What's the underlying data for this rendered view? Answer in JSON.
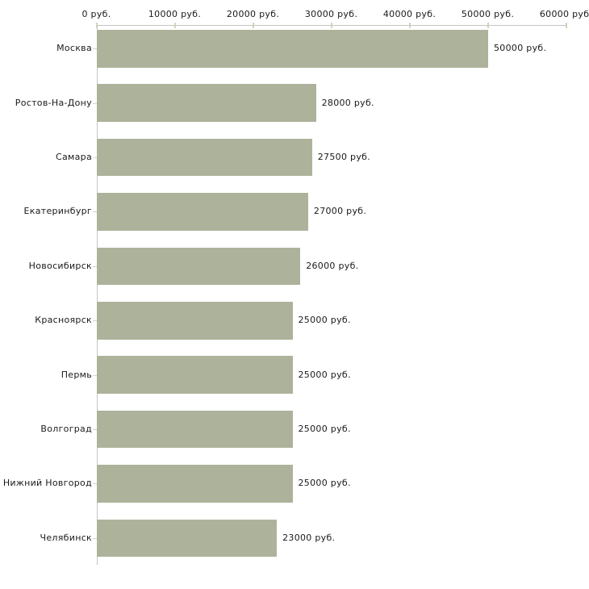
{
  "chart_data": {
    "type": "bar",
    "orientation": "horizontal",
    "unit": "руб.",
    "grid": false,
    "legend": false,
    "categories": [
      "Москва",
      "Ростов-На-Дону",
      "Самара",
      "Екатеринбург",
      "Новосибирск",
      "Красноярск",
      "Пермь",
      "Волгоград",
      "Нижний Новгород",
      "Челябинск"
    ],
    "values": [
      50000,
      28000,
      27500,
      27000,
      26000,
      25000,
      25000,
      25000,
      25000,
      23000
    ],
    "bar_value_labels": [
      "50000 руб.",
      "28000 руб.",
      "27500 руб.",
      "27000 руб.",
      "26000 руб.",
      "25000 руб.",
      "25000 руб.",
      "25000 руб.",
      "25000 руб.",
      "23000 руб."
    ],
    "x_axis": {
      "position": "top",
      "range": [
        0,
        60000
      ],
      "tick_values": [
        0,
        10000,
        20000,
        30000,
        40000,
        50000,
        60000
      ],
      "tick_labels": [
        "0 руб.",
        "10000 руб.",
        "20000 руб.",
        "30000 руб.",
        "40000 руб.",
        "50000 руб.",
        "60000 руб."
      ]
    },
    "colors": {
      "bar": "#adb39b",
      "axis_line": "#c5c5c5",
      "tick_mark": "#d8d4b8",
      "text": "#1a1a1a"
    }
  }
}
